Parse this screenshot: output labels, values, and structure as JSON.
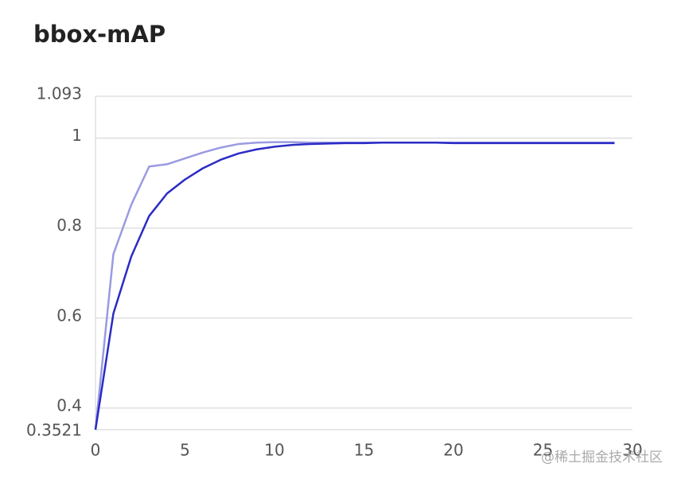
{
  "chart_data": {
    "type": "line",
    "title": "bbox-mAP",
    "x": [
      0,
      1,
      2,
      3,
      4,
      5,
      6,
      7,
      8,
      9,
      10,
      11,
      12,
      13,
      14,
      15,
      16,
      17,
      18,
      19,
      20,
      21,
      22,
      23,
      24,
      25,
      26,
      27,
      28,
      29
    ],
    "series": [
      {
        "color": "#9a9ae2",
        "values": [
          0.3521,
          0.742,
          0.852,
          0.937,
          0.942,
          0.955,
          0.968,
          0.979,
          0.987,
          0.99,
          0.991,
          0.991,
          0.99,
          0.99,
          0.99,
          0.99,
          0.99,
          0.99,
          0.99,
          0.99,
          0.99,
          0.99,
          0.99,
          0.99,
          0.99,
          0.99,
          0.99,
          0.99,
          0.99,
          0.99
        ]
      },
      {
        "color": "#2b2bc6",
        "values": [
          0.3521,
          0.61,
          0.737,
          0.827,
          0.877,
          0.908,
          0.933,
          0.952,
          0.966,
          0.975,
          0.981,
          0.985,
          0.987,
          0.988,
          0.989,
          0.989,
          0.99,
          0.99,
          0.99,
          0.99,
          0.989,
          0.989,
          0.989,
          0.989,
          0.989,
          0.989,
          0.989,
          0.989,
          0.989,
          0.989
        ]
      }
    ],
    "xlim": [
      0,
      30
    ],
    "xticks": [
      0,
      5,
      10,
      15,
      20,
      25,
      30
    ],
    "ylim": [
      0.3521,
      1.093
    ],
    "yticks": [
      0.3521,
      0.4,
      0.6,
      0.8,
      1,
      1.093
    ],
    "grid": true
  },
  "watermark": "@稀土掘金技术社区"
}
